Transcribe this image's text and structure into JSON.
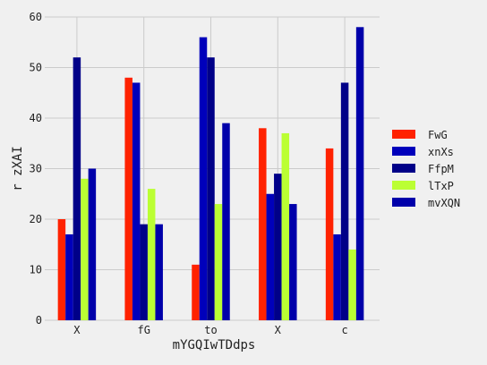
{
  "chart_data": {
    "type": "bar",
    "title": "",
    "xlabel": "mYGQIwTDdps",
    "ylabel": "r zXAI",
    "categories": [
      "X",
      "fG",
      "to",
      "X",
      "c"
    ],
    "ylim": [
      0,
      60
    ],
    "yticks": [
      0,
      10,
      20,
      30,
      40,
      50,
      60
    ],
    "grid": true,
    "legend_position": "right",
    "series": [
      {
        "name": "FwG",
        "color": "#ff2200",
        "values": [
          20,
          48,
          11,
          38,
          34
        ]
      },
      {
        "name": "xnXs",
        "color": "#0000bb",
        "values": [
          17,
          47,
          56,
          25,
          17
        ]
      },
      {
        "name": "FfpM",
        "color": "#000088",
        "values": [
          52,
          19,
          52,
          29,
          47
        ]
      },
      {
        "name": "lTxP",
        "color": "#bbff33",
        "values": [
          28,
          26,
          23,
          37,
          14
        ]
      },
      {
        "name": "mvXQN",
        "color": "#0000aa",
        "values": [
          30,
          19,
          39,
          23,
          58
        ]
      }
    ]
  }
}
